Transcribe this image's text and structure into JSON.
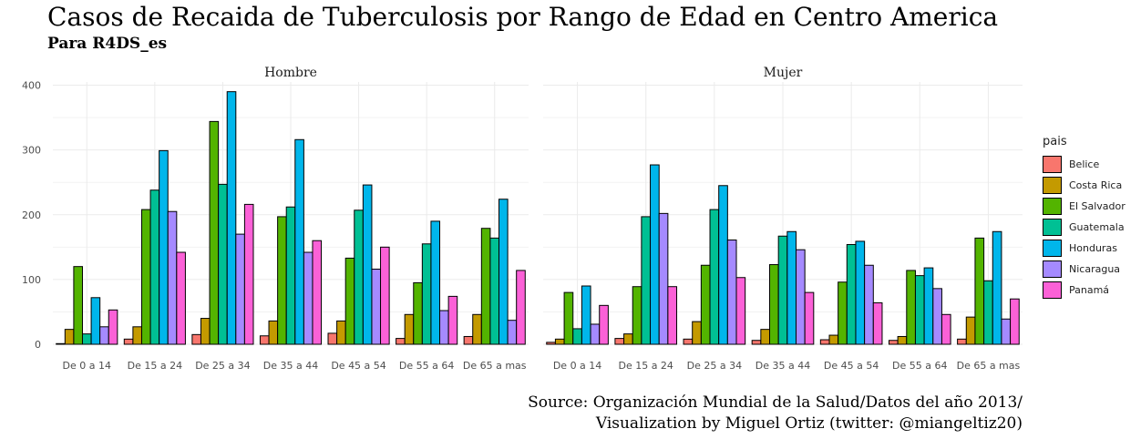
{
  "title": "Casos de Recaida de Tuberculosis por Rango de Edad en Centro America",
  "subtitle": "Para R4DS_es",
  "caption": {
    "line1": "Source: Organización Mundial de la Salud/Datos del año 2013/",
    "line2": "Visualization by Miguel Ortiz (twitter: @miangeltiz20)"
  },
  "legend": {
    "title": "pais",
    "items": [
      {
        "label": "Belice",
        "color": "#F8766D"
      },
      {
        "label": "Costa Rica",
        "color": "#C49A00"
      },
      {
        "label": "El Salvador",
        "color": "#53B400"
      },
      {
        "label": "Guatemala",
        "color": "#00C094"
      },
      {
        "label": "Honduras",
        "color": "#00B6EB"
      },
      {
        "label": "Nicaragua",
        "color": "#A58AFF"
      },
      {
        "label": "Panamá",
        "color": "#FB61D7"
      }
    ]
  },
  "chart_data": {
    "type": "bar",
    "y_ticks": [
      0,
      100,
      200,
      300,
      400
    ],
    "ylim": [
      0,
      405
    ],
    "categories": [
      "De 0 a 14",
      "De 15 a 24",
      "De 25 a 34",
      "De 35 a 44",
      "De 45 a 54",
      "De 55 a 64",
      "De 65 a mas"
    ],
    "series_names": [
      "Belice",
      "Costa Rica",
      "El Salvador",
      "Guatemala",
      "Honduras",
      "Nicaragua",
      "Panamá"
    ],
    "panels": [
      {
        "label": "Hombre",
        "values": [
          [
            1,
            23,
            120,
            16,
            72,
            27,
            53
          ],
          [
            8,
            27,
            208,
            238,
            299,
            205,
            142
          ],
          [
            15,
            40,
            344,
            247,
            390,
            170,
            216
          ],
          [
            13,
            36,
            197,
            212,
            316,
            142,
            160
          ],
          [
            17,
            36,
            133,
            207,
            246,
            116,
            150
          ],
          [
            9,
            46,
            95,
            155,
            190,
            52,
            74
          ],
          [
            12,
            46,
            179,
            164,
            224,
            37,
            114
          ]
        ]
      },
      {
        "label": "Mujer",
        "values": [
          [
            3,
            8,
            80,
            24,
            90,
            31,
            60
          ],
          [
            9,
            16,
            89,
            197,
            277,
            202,
            89
          ],
          [
            8,
            35,
            122,
            208,
            245,
            161,
            103
          ],
          [
            6,
            23,
            123,
            167,
            174,
            146,
            80
          ],
          [
            7,
            14,
            96,
            154,
            159,
            122,
            64
          ],
          [
            6,
            12,
            114,
            106,
            118,
            86,
            46
          ],
          [
            8,
            42,
            164,
            98,
            174,
            39,
            70
          ]
        ]
      }
    ]
  }
}
